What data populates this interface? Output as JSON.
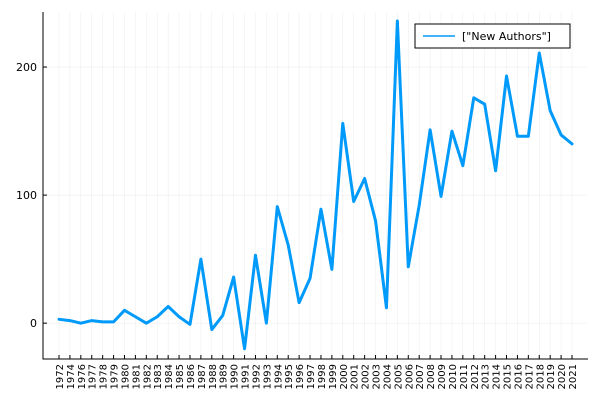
{
  "chart_data": {
    "type": "line",
    "title": "",
    "xlabel": "",
    "ylabel": "",
    "grid": true,
    "legend_position": "top-right",
    "x_categories": [
      "1972",
      "1974",
      "1976",
      "1977",
      "1978",
      "1979",
      "1980",
      "1981",
      "1982",
      "1983",
      "1984",
      "1985",
      "1986",
      "1987",
      "1988",
      "1989",
      "1990",
      "1991",
      "1992",
      "1993",
      "1994",
      "1995",
      "1996",
      "1997",
      "1998",
      "1999",
      "2000",
      "2001",
      "2002",
      "2003",
      "2004",
      "2005",
      "2006",
      "2007",
      "2008",
      "2009",
      "2010",
      "2011",
      "2012",
      "2013",
      "2014",
      "2015",
      "2016",
      "2017",
      "2018",
      "2019",
      "2020",
      "2021"
    ],
    "y_ticks": [
      0,
      100,
      200
    ],
    "ylim": [
      -28,
      243
    ],
    "series": [
      {
        "name": "[\"New Authors\"]",
        "color": "#009AFA",
        "values": [
          3,
          2,
          0,
          2,
          1,
          1,
          10,
          5,
          0,
          5,
          13,
          5,
          -1,
          50,
          -5,
          6,
          36,
          -20,
          53,
          0,
          91,
          61,
          16,
          35,
          89,
          42,
          156,
          95,
          113,
          80,
          12,
          236,
          44,
          92,
          151,
          99,
          150,
          123,
          176,
          171,
          119,
          193,
          146,
          146,
          211,
          166,
          147,
          140
        ]
      }
    ]
  }
}
